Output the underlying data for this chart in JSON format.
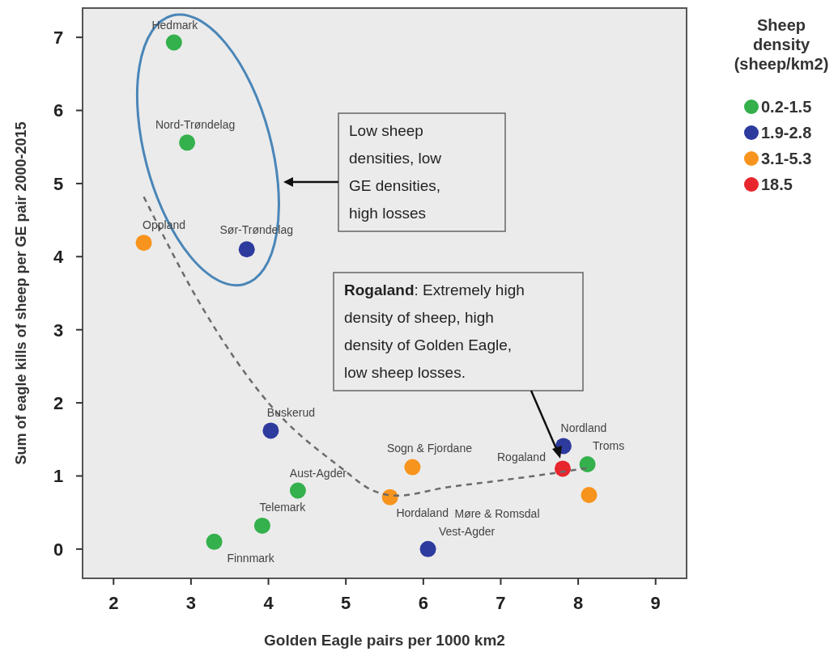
{
  "chart_data": {
    "type": "scatter",
    "xlabel": "Golden Eagle pairs per 1000 km2",
    "ylabel": "Sum of eagle kills of sheep per GE pair 2000-2015",
    "legend_title": "Sheep density (sheep/km2)",
    "legend": "right",
    "marker": "circle",
    "grid": false,
    "xlim": [
      1.6,
      9.4
    ],
    "xticks": [
      2,
      3,
      4,
      5,
      6,
      7,
      8,
      9
    ],
    "ylim": [
      -0.4,
      7.4
    ],
    "yticks": [
      0,
      1,
      2,
      3,
      4,
      5,
      6,
      7
    ],
    "series": [
      {
        "name": "0.2-1.5",
        "color": "#34b04c",
        "x": [
          2.78,
          2.95,
          4.38,
          3.92,
          3.3,
          8.12
        ],
        "values": [
          6.93,
          5.56,
          0.8,
          0.32,
          0.1,
          1.16
        ]
      },
      {
        "name": "1.9-2.8",
        "color": "#2d3a9e",
        "x": [
          3.72,
          4.03,
          6.06,
          7.81
        ],
        "values": [
          4.1,
          1.62,
          0.0,
          1.41
        ]
      },
      {
        "name": "3.1-5.3",
        "color": "#f7941d",
        "x": [
          2.39,
          5.57,
          5.86,
          8.14
        ],
        "values": [
          4.19,
          0.71,
          1.12,
          0.74
        ]
      },
      {
        "name": "18.5",
        "color": "#e8262d",
        "x": [
          7.8
        ],
        "values": [
          1.1
        ]
      },
      {
        "type": "line",
        "color": "#6b6b6b",
        "line_style": "dashed",
        "marker": "none",
        "x": [
          2.39,
          3.17,
          4.0,
          4.94,
          5.35,
          5.66,
          6.28,
          7.01,
          7.63,
          8.12
        ],
        "values": [
          4.82,
          3.26,
          2.0,
          1.11,
          0.8,
          0.73,
          0.84,
          0.94,
          1.03,
          1.11
        ]
      }
    ],
    "annotations": [
      "Low sheep densities, low GE densities, high losses",
      "Rogaland: Extremely high density of sheep, high density of Golden Eagle, low sheep losses.",
      {
        "text": "Hedmark",
        "x": 2.78,
        "y": 6.93
      },
      {
        "text": "Nord-Trøndelag",
        "x": 2.95,
        "y": 5.56
      },
      {
        "text": "Oppland",
        "x": 2.39,
        "y": 4.19
      },
      {
        "text": "Sør-Trøndelag",
        "x": 3.72,
        "y": 4.1
      },
      {
        "text": "Buskerud",
        "x": 4.03,
        "y": 1.62
      },
      {
        "text": "Aust-Agder",
        "x": 4.38,
        "y": 0.8
      },
      {
        "text": "Telemark",
        "x": 3.92,
        "y": 0.32
      },
      {
        "text": "Finnmark",
        "x": 3.3,
        "y": 0.1
      },
      {
        "text": "Sogn & Fjordane",
        "x": 5.86,
        "y": 1.12
      },
      {
        "text": "Rogaland",
        "x": 7.8,
        "y": 1.1
      },
      {
        "text": "Nordland",
        "x": 7.81,
        "y": 1.41
      },
      {
        "text": "Troms",
        "x": 8.12,
        "y": 1.16
      },
      {
        "text": "Hordaland",
        "x": 5.57,
        "y": 0.71
      },
      "Møre & Romsdal",
      {
        "text": "Vest-Agder",
        "x": 6.06,
        "y": 0.0
      }
    ]
  }
}
